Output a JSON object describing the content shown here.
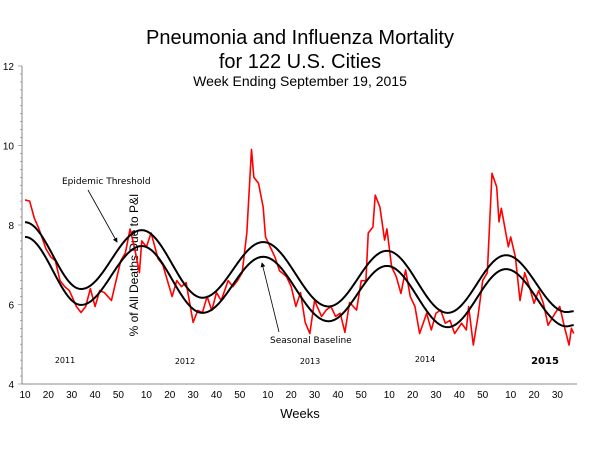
{
  "chart_data": {
    "type": "line",
    "title": "Pneumonia and Influenza Mortality",
    "title_line2": "for 122 U.S. Cities",
    "subtitle": "Week Ending September 19, 2015",
    "xlabel": "Weeks",
    "ylabel": "% of All Deaths Due to P&I",
    "ylim": [
      4,
      12
    ],
    "yticks": [
      4,
      6,
      8,
      10,
      12
    ],
    "xticks": {
      "2011": [
        10,
        20,
        30,
        40,
        50
      ],
      "2012": [
        10,
        20,
        30,
        40,
        50
      ],
      "2013": [
        10,
        20,
        30,
        40,
        50
      ],
      "2014": [
        10,
        20,
        30,
        40,
        50
      ],
      "2015": [
        10,
        20,
        30
      ]
    },
    "year_labels": [
      "2011",
      "2012",
      "2013",
      "2014",
      "2015"
    ],
    "grid": false,
    "annotations": {
      "threshold": "Epidemic Threshold",
      "baseline": "Seasonal Baseline"
    },
    "colors": {
      "observed": "#ff0000",
      "threshold": "#000000",
      "baseline": "#000000"
    },
    "point_format": [
      "year",
      "week",
      "value"
    ],
    "observed": [
      [
        2011,
        10,
        8.63
      ],
      [
        2011,
        12,
        8.6
      ],
      [
        2011,
        14,
        8.17
      ],
      [
        2011,
        16,
        7.9
      ],
      [
        2011,
        19,
        7.4
      ],
      [
        2011,
        21,
        7.2
      ],
      [
        2011,
        23,
        7.1
      ],
      [
        2011,
        25,
        6.6
      ],
      [
        2011,
        27,
        6.45
      ],
      [
        2011,
        29,
        6.35
      ],
      [
        2011,
        32,
        5.95
      ],
      [
        2011,
        34,
        5.8
      ],
      [
        2011,
        36,
        5.95
      ],
      [
        2011,
        38,
        6.4
      ],
      [
        2011,
        40,
        5.95
      ],
      [
        2011,
        42,
        6.35
      ],
      [
        2011,
        44,
        6.3
      ],
      [
        2011,
        47,
        6.1
      ],
      [
        2011,
        49,
        6.6
      ],
      [
        2011,
        51,
        7.1
      ],
      [
        2012,
        1,
        7.3
      ],
      [
        2012,
        3,
        7.9
      ],
      [
        2012,
        5,
        7.4
      ],
      [
        2012,
        7,
        6.8
      ],
      [
        2012,
        8,
        7.6
      ],
      [
        2012,
        10,
        7.45
      ],
      [
        2012,
        12,
        7.8
      ],
      [
        2012,
        15,
        7.15
      ],
      [
        2012,
        17,
        7.0
      ],
      [
        2012,
        19,
        6.6
      ],
      [
        2012,
        21,
        6.2
      ],
      [
        2012,
        23,
        6.6
      ],
      [
        2012,
        25,
        6.45
      ],
      [
        2012,
        27,
        6.55
      ],
      [
        2012,
        30,
        5.55
      ],
      [
        2012,
        32,
        5.85
      ],
      [
        2012,
        34,
        5.8
      ],
      [
        2012,
        36,
        6.2
      ],
      [
        2012,
        38,
        5.85
      ],
      [
        2012,
        40,
        6.3
      ],
      [
        2012,
        42,
        6.1
      ],
      [
        2012,
        45,
        6.6
      ],
      [
        2012,
        47,
        6.45
      ],
      [
        2012,
        49,
        6.6
      ],
      [
        2012,
        51,
        6.8
      ],
      [
        2013,
        1,
        7.8
      ],
      [
        2013,
        3,
        9.9
      ],
      [
        2013,
        4,
        9.2
      ],
      [
        2013,
        6,
        9.05
      ],
      [
        2013,
        8,
        8.45
      ],
      [
        2013,
        9,
        7.7
      ],
      [
        2013,
        11,
        7.45
      ],
      [
        2013,
        13,
        7.2
      ],
      [
        2013,
        15,
        6.85
      ],
      [
        2013,
        18,
        6.7
      ],
      [
        2013,
        20,
        6.45
      ],
      [
        2013,
        22,
        5.95
      ],
      [
        2013,
        24,
        6.3
      ],
      [
        2013,
        26,
        5.55
      ],
      [
        2013,
        28,
        5.27
      ],
      [
        2013,
        30,
        6.1
      ],
      [
        2013,
        33,
        5.7
      ],
      [
        2013,
        35,
        5.86
      ],
      [
        2013,
        37,
        5.95
      ],
      [
        2013,
        39,
        5.7
      ],
      [
        2013,
        41,
        5.78
      ],
      [
        2013,
        43,
        5.3
      ],
      [
        2013,
        45,
        6.05
      ],
      [
        2013,
        48,
        5.86
      ],
      [
        2013,
        50,
        6.6
      ],
      [
        2013,
        52,
        6.6
      ],
      [
        2014,
        1,
        7.8
      ],
      [
        2014,
        3,
        7.95
      ],
      [
        2014,
        4,
        8.75
      ],
      [
        2014,
        6,
        8.45
      ],
      [
        2014,
        8,
        7.62
      ],
      [
        2014,
        9,
        7.9
      ],
      [
        2014,
        11,
        6.95
      ],
      [
        2014,
        13,
        6.7
      ],
      [
        2014,
        15,
        6.28
      ],
      [
        2014,
        17,
        6.87
      ],
      [
        2014,
        19,
        6.2
      ],
      [
        2014,
        21,
        5.95
      ],
      [
        2014,
        23,
        5.27
      ],
      [
        2014,
        26,
        5.78
      ],
      [
        2014,
        28,
        5.36
      ],
      [
        2014,
        30,
        5.78
      ],
      [
        2014,
        32,
        5.86
      ],
      [
        2014,
        34,
        5.53
      ],
      [
        2014,
        36,
        5.6
      ],
      [
        2014,
        38,
        5.27
      ],
      [
        2014,
        41,
        5.53
      ],
      [
        2014,
        43,
        5.36
      ],
      [
        2014,
        44,
        5.95
      ],
      [
        2014,
        46,
        4.98
      ],
      [
        2014,
        48,
        5.7
      ],
      [
        2014,
        50,
        6.6
      ],
      [
        2014,
        52,
        6.8
      ],
      [
        2015,
        2,
        9.3
      ],
      [
        2015,
        4,
        8.96
      ],
      [
        2015,
        5,
        8.08
      ],
      [
        2015,
        6,
        8.42
      ],
      [
        2015,
        9,
        7.45
      ],
      [
        2015,
        10,
        7.7
      ],
      [
        2015,
        12,
        7.2
      ],
      [
        2015,
        14,
        6.1
      ],
      [
        2015,
        16,
        6.8
      ],
      [
        2015,
        18,
        6.45
      ],
      [
        2015,
        20,
        6.03
      ],
      [
        2015,
        22,
        6.35
      ],
      [
        2015,
        24,
        6.03
      ],
      [
        2015,
        26,
        5.48
      ],
      [
        2015,
        29,
        5.78
      ],
      [
        2015,
        31,
        5.95
      ],
      [
        2015,
        33,
        5.44
      ],
      [
        2015,
        35,
        4.98
      ],
      [
        2015,
        36,
        5.4
      ],
      [
        2015,
        37,
        5.27
      ]
    ],
    "baseline": [
      [
        2011,
        10,
        7.7
      ],
      [
        2011,
        34,
        5.99
      ],
      [
        2012,
        8,
        7.47
      ],
      [
        2012,
        34,
        5.79
      ],
      [
        2013,
        8,
        7.2
      ],
      [
        2013,
        36,
        5.58
      ],
      [
        2014,
        9,
        6.97
      ],
      [
        2014,
        35,
        5.43
      ],
      [
        2015,
        8,
        6.89
      ],
      [
        2015,
        34,
        5.45
      ],
      [
        2015,
        37,
        5.48
      ]
    ],
    "threshold": [
      [
        2011,
        10,
        8.07
      ],
      [
        2011,
        34,
        6.39
      ],
      [
        2012,
        8,
        7.87
      ],
      [
        2012,
        34,
        6.17
      ],
      [
        2013,
        8,
        7.57
      ],
      [
        2013,
        36,
        5.95
      ],
      [
        2014,
        9,
        7.35
      ],
      [
        2014,
        35,
        5.79
      ],
      [
        2015,
        8,
        7.24
      ],
      [
        2015,
        34,
        5.81
      ],
      [
        2015,
        37,
        5.83
      ]
    ]
  }
}
